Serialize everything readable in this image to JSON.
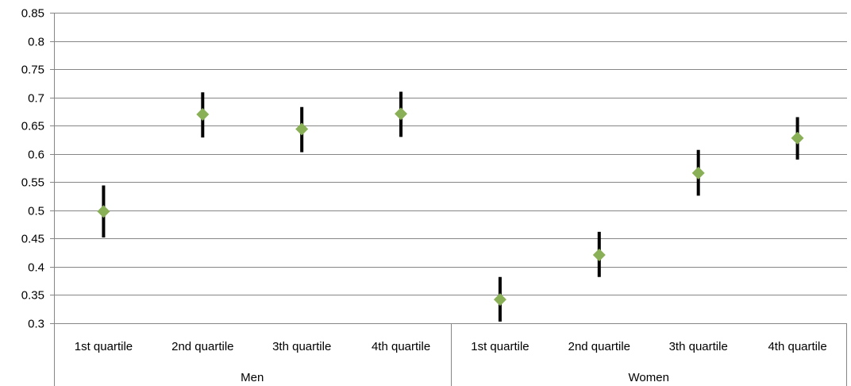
{
  "chart_data": {
    "type": "scatter",
    "title": "",
    "xlabel": "",
    "ylabel": "",
    "ylim": [
      0.3,
      0.85
    ],
    "yticks": [
      "0.3",
      "0.35",
      "0.4",
      "0.45",
      "0.5",
      "0.55",
      "0.6",
      "0.65",
      "0.7",
      "0.75",
      "0.8",
      "0.85"
    ],
    "grid": true,
    "legend": "none",
    "groups": [
      {
        "label": "Men",
        "categories": [
          "1st quartile",
          "2nd quartile",
          "3th quartile",
          "4th quartile"
        ]
      },
      {
        "label": "Women",
        "categories": [
          "1st quartile",
          "2nd quartile",
          "3th quartile",
          "4th quartile"
        ]
      }
    ],
    "categories": [
      "1st quartile",
      "2nd quartile",
      "3th quartile",
      "4th quartile",
      "1st quartile",
      "2nd quartile",
      "3th quartile",
      "4th quartile"
    ],
    "values": [
      0.498,
      0.67,
      0.644,
      0.671,
      0.342,
      0.421,
      0.566,
      0.628
    ],
    "error_low": [
      0.452,
      0.629,
      0.603,
      0.63,
      0.303,
      0.382,
      0.526,
      0.59
    ],
    "error_high": [
      0.544,
      0.709,
      0.683,
      0.71,
      0.382,
      0.462,
      0.607,
      0.665
    ],
    "colors": {
      "marker": "#8AB057",
      "error_bar": "#000000",
      "grid": "#868686",
      "axis": "#868686"
    }
  }
}
